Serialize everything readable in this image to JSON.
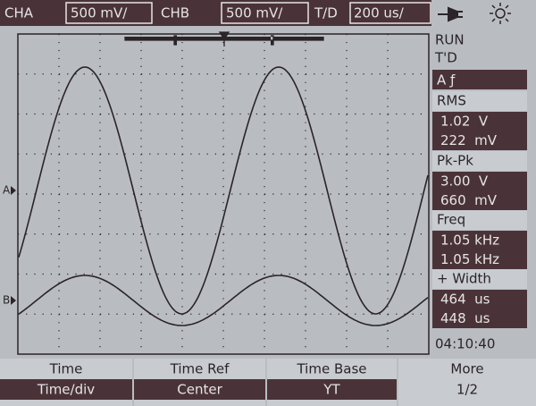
{
  "top_bar": {
    "cha_label": "CHA",
    "cha_scale": "500 mV/",
    "chb_label": "CHB",
    "chb_scale": "500 mV/",
    "timebase_label": "T/D",
    "timebase_scale": "200 us/"
  },
  "status": {
    "run": "RUN",
    "trigger": "T'D",
    "trigger_source": "A ƒ"
  },
  "measurements": [
    {
      "label": "RMS",
      "values": [
        "1.02  V",
        "222  mV"
      ]
    },
    {
      "label": "Pk-Pk",
      "values": [
        "3.00  V",
        "660  mV"
      ]
    },
    {
      "label": "Freq",
      "values": [
        "1.05 kHz",
        "1.05 kHz"
      ]
    },
    {
      "label": "+ Width",
      "values": [
        "464  us",
        "448  us"
      ]
    }
  ],
  "clock": "04:10:40",
  "markers": {
    "a": "A",
    "b": "B"
  },
  "softkeys": [
    {
      "label": "Time",
      "value": "Time/div"
    },
    {
      "label": "Time Ref",
      "value": "Center"
    },
    {
      "label": "Time Base",
      "value": "YT"
    },
    {
      "label": "More",
      "value": "1/2"
    }
  ]
}
